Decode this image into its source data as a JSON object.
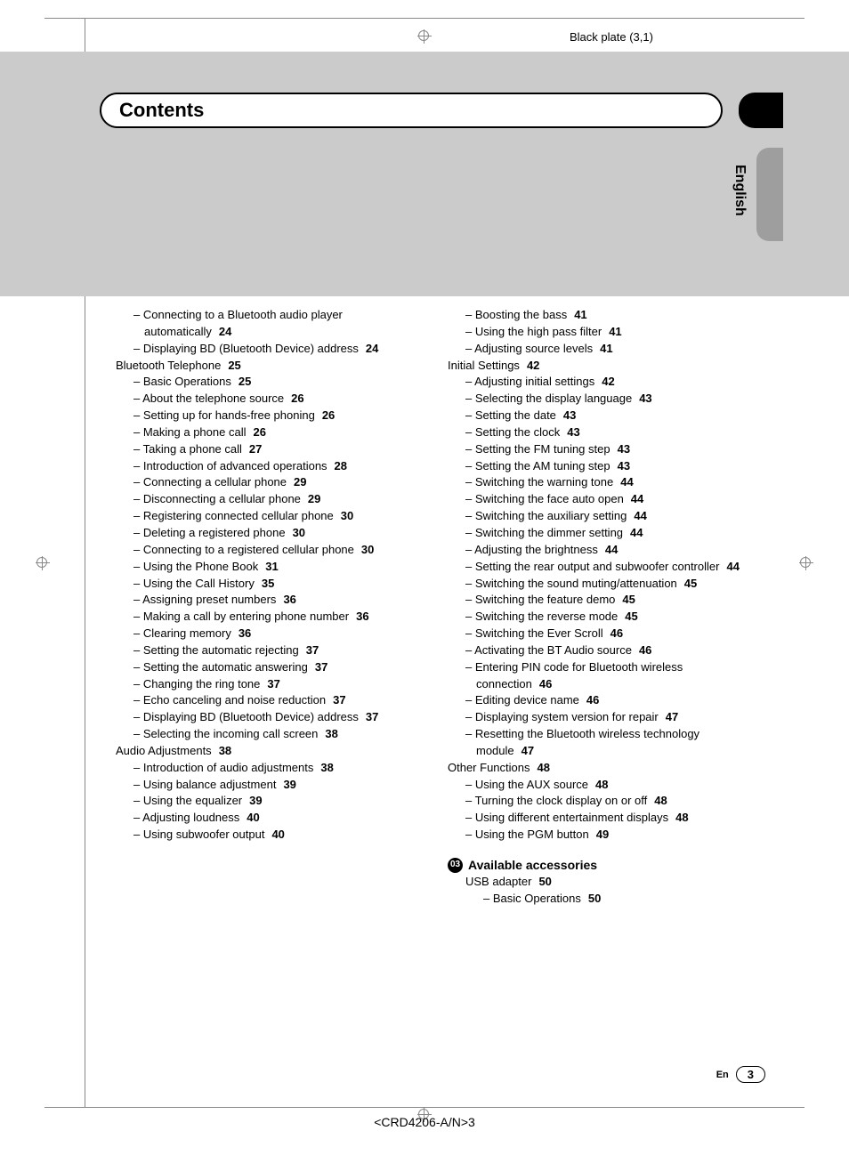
{
  "meta": {
    "black_plate": "Black plate (3,1)",
    "footer_ref": "<CRD4206-A/N>3",
    "lang_label": "English",
    "footer_lang": "En",
    "footer_page": "3",
    "title": "Contents"
  },
  "colors": {
    "grey_band": "#cbcbcb",
    "grey_tab": "#9e9e9e",
    "rule": "#888888",
    "text": "#000000"
  },
  "typography": {
    "body_fontsize_pt": 10,
    "title_fontsize_pt": 17,
    "page_bold": true
  },
  "toc": {
    "left": [
      {
        "l": 1,
        "t": "Connecting to a Bluetooth audio player automatically",
        "p": "24"
      },
      {
        "l": 1,
        "t": "Displaying BD (Bluetooth Device) address",
        "p": "24"
      },
      {
        "l": 0,
        "t": "Bluetooth Telephone",
        "p": "25"
      },
      {
        "l": 1,
        "t": "Basic Operations",
        "p": "25"
      },
      {
        "l": 1,
        "t": "About the telephone source",
        "p": "26"
      },
      {
        "l": 1,
        "t": "Setting up for hands-free phoning",
        "p": "26"
      },
      {
        "l": 1,
        "t": "Making a phone call",
        "p": "26"
      },
      {
        "l": 1,
        "t": "Taking a phone call",
        "p": "27"
      },
      {
        "l": 1,
        "t": "Introduction of advanced operations",
        "p": "28"
      },
      {
        "l": 1,
        "t": "Connecting a cellular phone",
        "p": "29"
      },
      {
        "l": 1,
        "t": "Disconnecting a cellular phone",
        "p": "29"
      },
      {
        "l": 1,
        "t": "Registering connected cellular phone",
        "p": "30"
      },
      {
        "l": 1,
        "t": "Deleting a registered phone",
        "p": "30"
      },
      {
        "l": 1,
        "t": "Connecting to a registered cellular phone",
        "p": "30"
      },
      {
        "l": 1,
        "t": "Using the Phone Book",
        "p": "31"
      },
      {
        "l": 1,
        "t": "Using the Call History",
        "p": "35"
      },
      {
        "l": 1,
        "t": "Assigning preset numbers",
        "p": "36"
      },
      {
        "l": 1,
        "t": "Making a call by entering phone number",
        "p": "36"
      },
      {
        "l": 1,
        "t": "Clearing memory",
        "p": "36"
      },
      {
        "l": 1,
        "t": "Setting the automatic rejecting",
        "p": "37"
      },
      {
        "l": 1,
        "t": "Setting the automatic answering",
        "p": "37"
      },
      {
        "l": 1,
        "t": "Changing the ring tone",
        "p": "37"
      },
      {
        "l": 1,
        "t": "Echo canceling and noise reduction",
        "p": "37"
      },
      {
        "l": 1,
        "t": "Displaying BD (Bluetooth Device) address",
        "p": "37"
      },
      {
        "l": 1,
        "t": "Selecting the incoming call screen",
        "p": "38"
      },
      {
        "l": 0,
        "t": "Audio Adjustments",
        "p": "38"
      },
      {
        "l": 1,
        "t": "Introduction of audio adjustments",
        "p": "38"
      },
      {
        "l": 1,
        "t": "Using balance adjustment",
        "p": "39"
      },
      {
        "l": 1,
        "t": "Using the equalizer",
        "p": "39"
      },
      {
        "l": 1,
        "t": "Adjusting loudness",
        "p": "40"
      },
      {
        "l": 1,
        "t": "Using subwoofer output",
        "p": "40"
      }
    ],
    "right": [
      {
        "l": 1,
        "t": "Boosting the bass",
        "p": "41"
      },
      {
        "l": 1,
        "t": "Using the high pass filter",
        "p": "41"
      },
      {
        "l": 1,
        "t": "Adjusting source levels",
        "p": "41"
      },
      {
        "l": 0,
        "t": "Initial Settings",
        "p": "42"
      },
      {
        "l": 1,
        "t": "Adjusting initial settings",
        "p": "42"
      },
      {
        "l": 1,
        "t": "Selecting the display language",
        "p": "43"
      },
      {
        "l": 1,
        "t": "Setting the date",
        "p": "43"
      },
      {
        "l": 1,
        "t": "Setting the clock",
        "p": "43"
      },
      {
        "l": 1,
        "t": "Setting the FM tuning step",
        "p": "43"
      },
      {
        "l": 1,
        "t": "Setting the AM tuning step",
        "p": "43"
      },
      {
        "l": 1,
        "t": "Switching the warning tone",
        "p": "44"
      },
      {
        "l": 1,
        "t": "Switching the face auto open",
        "p": "44"
      },
      {
        "l": 1,
        "t": "Switching the auxiliary setting",
        "p": "44"
      },
      {
        "l": 1,
        "t": "Switching the dimmer setting",
        "p": "44"
      },
      {
        "l": 1,
        "t": "Adjusting the brightness",
        "p": "44"
      },
      {
        "l": 1,
        "t": "Setting the rear output and subwoofer controller",
        "p": "44"
      },
      {
        "l": 1,
        "t": "Switching the sound muting/attenuation",
        "p": "45"
      },
      {
        "l": 1,
        "t": "Switching the feature demo",
        "p": "45"
      },
      {
        "l": 1,
        "t": "Switching the reverse mode",
        "p": "45"
      },
      {
        "l": 1,
        "t": "Switching the Ever Scroll",
        "p": "46"
      },
      {
        "l": 1,
        "t": "Activating the BT Audio source",
        "p": "46"
      },
      {
        "l": 1,
        "t": "Entering PIN code for Bluetooth wireless connection",
        "p": "46"
      },
      {
        "l": 1,
        "t": "Editing device name",
        "p": "46"
      },
      {
        "l": 1,
        "t": "Displaying system version for repair",
        "p": "47"
      },
      {
        "l": 1,
        "t": "Resetting the Bluetooth wireless technology module",
        "p": "47"
      },
      {
        "l": 0,
        "t": "Other Functions",
        "p": "48"
      },
      {
        "l": 1,
        "t": "Using the AUX source",
        "p": "48"
      },
      {
        "l": 1,
        "t": "Turning the clock display on or off",
        "p": "48"
      },
      {
        "l": 1,
        "t": "Using different entertainment displays",
        "p": "48"
      },
      {
        "l": 1,
        "t": "Using the PGM button",
        "p": "49"
      }
    ],
    "section": {
      "num": "03",
      "title": "Available accessories",
      "items": [
        {
          "l": 0,
          "t": "USB adapter",
          "p": "50"
        },
        {
          "l": 1,
          "t": "Basic Operations",
          "p": "50"
        }
      ]
    }
  }
}
